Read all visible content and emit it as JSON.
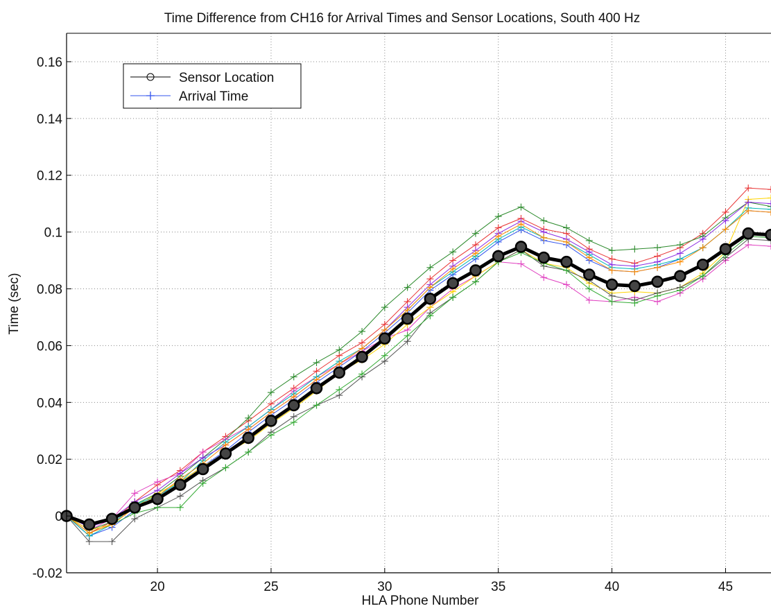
{
  "chart_data": {
    "type": "line",
    "title": "Time Difference from CH16 for Arrival Times and Sensor Locations, South 400 Hz",
    "xlabel": "HLA Phone Number",
    "ylabel": "Time (sec)",
    "xlim": [
      16,
      47
    ],
    "ylim": [
      -0.02,
      0.17
    ],
    "grid": true,
    "grid_style": "dotted",
    "legend_position": "top-left",
    "x_ticks": [
      20,
      25,
      30,
      35,
      40,
      45
    ],
    "x_tick_labels": [
      "20",
      "25",
      "30",
      "35",
      "40",
      "45"
    ],
    "y_ticks": [
      -0.02,
      0,
      0.02,
      0.04,
      0.06,
      0.08,
      0.1,
      0.12,
      0.14,
      0.16
    ],
    "y_tick_labels": [
      "-0.02",
      "0",
      "0.02",
      "0.04",
      "0.06",
      "0.08",
      "0.1",
      "0.12",
      "0.14",
      "0.16"
    ],
    "legend": [
      {
        "label": "Sensor Location",
        "color": "#000000",
        "marker": "circle"
      },
      {
        "label": "Arrival Time",
        "color": "#3355ee",
        "marker": "plus"
      }
    ],
    "sensor_location": {
      "color": "#000000",
      "x": [
        16,
        17,
        18,
        19,
        20,
        21,
        22,
        23,
        24,
        25,
        26,
        27,
        28,
        29,
        30,
        31,
        32,
        33,
        34,
        35,
        36,
        37,
        38,
        39,
        40,
        41,
        42,
        43,
        44,
        45,
        46,
        47
      ],
      "y": [
        0.0,
        -0.003,
        -0.001,
        0.003,
        0.006,
        0.011,
        0.0165,
        0.022,
        0.0275,
        0.0335,
        0.039,
        0.045,
        0.0505,
        0.056,
        0.0625,
        0.0695,
        0.0765,
        0.082,
        0.0865,
        0.0915,
        0.0948,
        0.091,
        0.0895,
        0.085,
        0.0815,
        0.081,
        0.0825,
        0.0845,
        0.0885,
        0.094,
        0.0995,
        0.099
      ]
    },
    "arrival_time_series": [
      {
        "color": "#3355ee",
        "offsets": [
          0,
          -0.004,
          -0.003,
          -0.001,
          0.001,
          0.001,
          0.001,
          0.001,
          0.002,
          0.002,
          0.002,
          0.002,
          0.002,
          0.002,
          0.002,
          0.002,
          0.003,
          0.003,
          0.004,
          0.005,
          0.006,
          0.006,
          0.006,
          0.005,
          0.005,
          0.005,
          0.005,
          0.006,
          0.006,
          0.007,
          0.008,
          0.008
        ]
      },
      {
        "color": "#e83434",
        "offsets": [
          0,
          -0.003,
          -0.001,
          0.002,
          0.005,
          0.005,
          0.006,
          0.006,
          0.006,
          0.006,
          0.006,
          0.006,
          0.006,
          0.005,
          0.005,
          0.006,
          0.007,
          0.008,
          0.009,
          0.01,
          0.01,
          0.01,
          0.01,
          0.009,
          0.009,
          0.008,
          0.009,
          0.01,
          0.011,
          0.013,
          0.016,
          0.016
        ]
      },
      {
        "color": "#2c8a2c",
        "offsets": [
          0,
          -0.002,
          -0.001,
          0.001,
          0.002,
          0.003,
          0.004,
          0.005,
          0.007,
          0.01,
          0.01,
          0.009,
          0.008,
          0.009,
          0.011,
          0.011,
          0.011,
          0.011,
          0.013,
          0.014,
          0.014,
          0.013,
          0.012,
          0.012,
          0.012,
          0.013,
          0.012,
          0.011,
          0.01,
          0.011,
          0.011,
          0.01
        ]
      },
      {
        "color": "#e040c0",
        "offsets": [
          0,
          -0.002,
          0.0,
          0.005,
          0.006,
          0.004,
          0.006,
          0.005,
          0.004,
          0.004,
          0.005,
          0.004,
          0.003,
          0.002,
          0.0,
          -0.004,
          -0.003,
          -0.002,
          -0.002,
          -0.002,
          -0.006,
          -0.007,
          -0.008,
          -0.009,
          -0.006,
          -0.004,
          -0.007,
          -0.006,
          -0.005,
          -0.004,
          -0.004,
          -0.004
        ]
      },
      {
        "color": "#ffd400",
        "offsets": [
          0,
          -0.002,
          -0.002,
          0.0,
          0.002,
          0.001,
          0.001,
          0.0,
          -0.001,
          -0.001,
          -0.001,
          -0.001,
          0.0,
          -0.001,
          -0.002,
          -0.002,
          -0.003,
          -0.003,
          -0.002,
          -0.002,
          -0.001,
          -0.002,
          -0.002,
          -0.003,
          -0.003,
          -0.002,
          -0.004,
          -0.004,
          -0.003,
          -0.001,
          0.012,
          0.013
        ]
      },
      {
        "color": "#00b5b5",
        "offsets": [
          0,
          -0.004,
          -0.002,
          0.001,
          0.001,
          0.001,
          0.003,
          0.004,
          0.004,
          0.004,
          0.004,
          0.004,
          0.004,
          0.003,
          0.003,
          0.003,
          0.004,
          0.004,
          0.005,
          0.006,
          0.007,
          0.007,
          0.007,
          0.007,
          0.006,
          0.006,
          0.006,
          0.006,
          0.006,
          0.007,
          0.009,
          0.009
        ]
      },
      {
        "color": "#555555",
        "offsets": [
          0,
          -0.006,
          -0.008,
          -0.004,
          -0.003,
          -0.004,
          -0.004,
          -0.005,
          -0.005,
          -0.004,
          -0.004,
          -0.006,
          -0.008,
          -0.007,
          -0.008,
          -0.008,
          -0.005,
          -0.005,
          -0.004,
          -0.002,
          -0.001,
          -0.003,
          -0.003,
          -0.002,
          -0.004,
          -0.005,
          -0.004,
          -0.004,
          -0.004,
          -0.003,
          -0.002,
          -0.002
        ]
      },
      {
        "color": "#8a2be2",
        "offsets": [
          0,
          -0.001,
          0.0,
          0.002,
          0.003,
          0.004,
          0.004,
          0.003,
          0.003,
          0.003,
          0.003,
          0.003,
          0.003,
          0.003,
          0.003,
          0.004,
          0.005,
          0.006,
          0.007,
          0.008,
          0.009,
          0.009,
          0.008,
          0.008,
          0.007,
          0.007,
          0.007,
          0.008,
          0.009,
          0.01,
          0.011,
          0.011
        ]
      },
      {
        "color": "#33aa33",
        "offsets": [
          0,
          -0.003,
          -0.002,
          -0.002,
          -0.003,
          -0.008,
          -0.005,
          -0.005,
          -0.005,
          -0.005,
          -0.006,
          -0.006,
          -0.006,
          -0.006,
          -0.006,
          -0.006,
          -0.006,
          -0.005,
          -0.004,
          -0.002,
          -0.002,
          -0.002,
          -0.003,
          -0.005,
          -0.006,
          -0.006,
          -0.005,
          -0.005,
          -0.004,
          -0.002,
          -0.001,
          -0.001
        ]
      },
      {
        "color": "#ff8c00",
        "offsets": [
          0,
          -0.003,
          -0.002,
          0.0,
          0.001,
          0.002,
          0.002,
          0.003,
          0.003,
          0.003,
          0.003,
          0.003,
          0.003,
          0.003,
          0.003,
          0.003,
          0.004,
          0.005,
          0.006,
          0.007,
          0.008,
          0.007,
          0.007,
          0.006,
          0.005,
          0.005,
          0.005,
          0.005,
          0.006,
          0.007,
          0.008,
          0.008
        ]
      }
    ]
  }
}
